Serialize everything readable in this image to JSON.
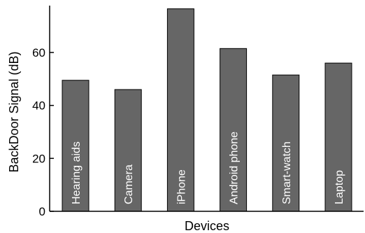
{
  "chart_data": {
    "type": "bar",
    "categories": [
      "Hearing aids",
      "Camera",
      "iPhone",
      "Android phone",
      "Smart-watch",
      "Laptop"
    ],
    "values": [
      49.5,
      46,
      76.5,
      61.5,
      51.5,
      56
    ],
    "title": "",
    "xlabel": "Devices",
    "ylabel": "BackDoor Signal (dB)",
    "ylim": [
      0,
      78
    ],
    "yticks": [
      0,
      20,
      40,
      60
    ],
    "bar_color": "#666666",
    "bar_label_color": "#ffffff",
    "grid": false,
    "category_labels_inside_bars": true
  }
}
